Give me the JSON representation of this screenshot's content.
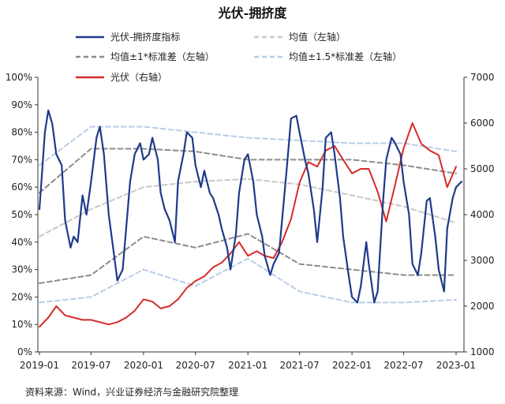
{
  "chart_data": {
    "type": "line",
    "title": "光伏-拥挤度",
    "source": "资料来源：Wind，兴业证券经济与金融研究院整理",
    "x_ticks": [
      "2019-01",
      "2019-07",
      "2020-01",
      "2020-07",
      "2021-01",
      "2021-07",
      "2022-01",
      "2022-07",
      "2023-01"
    ],
    "y_left": {
      "ylim": [
        0,
        100
      ],
      "ticks": [
        "0%",
        "10%",
        "20%",
        "30%",
        "40%",
        "50%",
        "60%",
        "70%",
        "80%",
        "90%",
        "100%"
      ]
    },
    "y_right": {
      "ylim": [
        1000,
        7000
      ],
      "ticks": [
        "1000",
        "2000",
        "3000",
        "4000",
        "5000",
        "6000",
        "7000"
      ]
    },
    "legend": [
      {
        "name": "光伏-拥挤度指标",
        "color": "#1f3a8a",
        "style": "solid"
      },
      {
        "name": "均值（左轴）",
        "color": "#c8c8c8",
        "style": "dashed"
      },
      {
        "name": "均值±1*标准差（左轴）",
        "color": "#8c8c8c",
        "style": "dashed"
      },
      {
        "name": "均值±1.5*标准差（左轴）",
        "color": "#b8cde8",
        "style": "dashed"
      },
      {
        "name": "光伏（右轴）",
        "color": "#d62b2b",
        "style": "solid"
      }
    ],
    "series": [
      {
        "name": "光伏-拥挤度指标",
        "axis": "left",
        "x": [
          "2019-01",
          "2019-01-20",
          "2019-02",
          "2019-02-15",
          "2019-03",
          "2019-03-20",
          "2019-04",
          "2019-04-20",
          "2019-05",
          "2019-05-15",
          "2019-06",
          "2019-06-15",
          "2019-07",
          "2019-07-20",
          "2019-08",
          "2019-08-15",
          "2019-09",
          "2019-09-20",
          "2019-10",
          "2019-10-20",
          "2019-11",
          "2019-11-15",
          "2019-12",
          "2019-12-20",
          "2020-01",
          "2020-01-20",
          "2020-02",
          "2020-02-20",
          "2020-03",
          "2020-03-15",
          "2020-04",
          "2020-04-20",
          "2020-05",
          "2020-05-20",
          "2020-06",
          "2020-06-20",
          "2020-07",
          "2020-07-20",
          "2020-08",
          "2020-08-20",
          "2020-09",
          "2020-09-20",
          "2020-10",
          "2020-10-20",
          "2020-11",
          "2020-11-20",
          "2020-12",
          "2020-12-20",
          "2021-01",
          "2021-01-20",
          "2021-02",
          "2021-02-20",
          "2021-03",
          "2021-03-20",
          "2021-04",
          "2021-04-20",
          "2021-05",
          "2021-05-20",
          "2021-06",
          "2021-06-20",
          "2021-07",
          "2021-07-20",
          "2021-08",
          "2021-08-20",
          "2021-09",
          "2021-09-20",
          "2021-10",
          "2021-10-20",
          "2021-11",
          "2021-11-20",
          "2021-12",
          "2021-12-20",
          "2022-01",
          "2022-01-20",
          "2022-02",
          "2022-02-20",
          "2022-03",
          "2022-03-20",
          "2022-04",
          "2022-04-20",
          "2022-05",
          "2022-05-20",
          "2022-06",
          "2022-06-20",
          "2022-07",
          "2022-07-20",
          "2022-08",
          "2022-08-20",
          "2022-09",
          "2022-09-20",
          "2022-10",
          "2022-10-20",
          "2022-11",
          "2022-11-20",
          "2022-12",
          "2022-12-20",
          "2023-01",
          "2023-01-20"
        ],
        "values": [
          52,
          80,
          88,
          83,
          72,
          68,
          48,
          38,
          42,
          40,
          57,
          50,
          62,
          78,
          82,
          72,
          50,
          35,
          26,
          30,
          45,
          62,
          72,
          76,
          70,
          72,
          78,
          70,
          58,
          52,
          48,
          40,
          62,
          72,
          80,
          78,
          68,
          60,
          66,
          58,
          56,
          50,
          45,
          38,
          30,
          43,
          58,
          70,
          72,
          62,
          50,
          42,
          35,
          28,
          32,
          36,
          48,
          70,
          85,
          86,
          80,
          70,
          65,
          52,
          40,
          60,
          78,
          80,
          72,
          56,
          42,
          28,
          20,
          18,
          24,
          40,
          32,
          18,
          22,
          55,
          70,
          78,
          76,
          72,
          62,
          50,
          32,
          28,
          36,
          55,
          56,
          42,
          30,
          22,
          45,
          56,
          60,
          62
        ]
      },
      {
        "name": "均值（左轴）",
        "axis": "left",
        "x": [
          "2019-01",
          "2019-07",
          "2020-01",
          "2020-07",
          "2021-01",
          "2021-07",
          "2022-01",
          "2022-07",
          "2023-01"
        ],
        "values": [
          42,
          52,
          60,
          62,
          63,
          61,
          57,
          53,
          47
        ]
      },
      {
        "name": "均值+1*标准差（左轴）",
        "axis": "left",
        "x": [
          "2019-01",
          "2019-07",
          "2020-01",
          "2020-07",
          "2021-01",
          "2021-07",
          "2022-01",
          "2022-07",
          "2023-01"
        ],
        "values": [
          58,
          74,
          74,
          73,
          70,
          70,
          70,
          68,
          65
        ]
      },
      {
        "name": "均值-1*标准差（左轴）",
        "axis": "left",
        "x": [
          "2019-01",
          "2019-07",
          "2020-01",
          "2020-07",
          "2021-01",
          "2021-07",
          "2022-01",
          "2022-07",
          "2023-01"
        ],
        "values": [
          25,
          28,
          42,
          38,
          43,
          32,
          30,
          28,
          28
        ]
      },
      {
        "name": "均值+1.5*标准差（左轴）",
        "axis": "left",
        "x": [
          "2019-01",
          "2019-07",
          "2020-01",
          "2020-07",
          "2021-01",
          "2021-07",
          "2022-01",
          "2022-07",
          "2023-01"
        ],
        "values": [
          68,
          82,
          82,
          80,
          78,
          77,
          76,
          76,
          73
        ]
      },
      {
        "name": "均值-1.5*标准差（左轴）",
        "axis": "left",
        "x": [
          "2019-01",
          "2019-07",
          "2020-01",
          "2020-07",
          "2021-01",
          "2021-07",
          "2022-01",
          "2022-07",
          "2023-01"
        ],
        "values": [
          18,
          20,
          30,
          24,
          34,
          22,
          18,
          18,
          19
        ]
      },
      {
        "name": "光伏（右轴）",
        "axis": "right",
        "x": [
          "2019-01",
          "2019-02",
          "2019-03",
          "2019-04",
          "2019-05",
          "2019-06",
          "2019-07",
          "2019-08",
          "2019-09",
          "2019-10",
          "2019-11",
          "2019-12",
          "2020-01",
          "2020-02",
          "2020-03",
          "2020-04",
          "2020-05",
          "2020-06",
          "2020-07",
          "2020-08",
          "2020-09",
          "2020-10",
          "2020-11",
          "2020-12",
          "2021-01",
          "2021-02",
          "2021-03",
          "2021-04",
          "2021-05",
          "2021-06",
          "2021-07",
          "2021-08",
          "2021-09",
          "2021-10",
          "2021-11",
          "2021-12",
          "2022-01",
          "2022-02",
          "2022-03",
          "2022-04",
          "2022-05",
          "2022-06",
          "2022-07",
          "2022-08",
          "2022-09",
          "2022-10",
          "2022-11",
          "2022-12",
          "2023-01"
        ],
        "values": [
          1550,
          1750,
          2000,
          1800,
          1750,
          1700,
          1700,
          1650,
          1600,
          1650,
          1750,
          1900,
          2150,
          2100,
          1950,
          2000,
          2150,
          2400,
          2550,
          2650,
          2850,
          2950,
          3150,
          3400,
          3100,
          3200,
          3100,
          3050,
          3400,
          3900,
          4700,
          5150,
          5050,
          5400,
          5500,
          5200,
          4900,
          5000,
          5000,
          4500,
          3850,
          4650,
          5450,
          6000,
          5550,
          5400,
          5300,
          4600,
          5050
        ]
      }
    ]
  }
}
